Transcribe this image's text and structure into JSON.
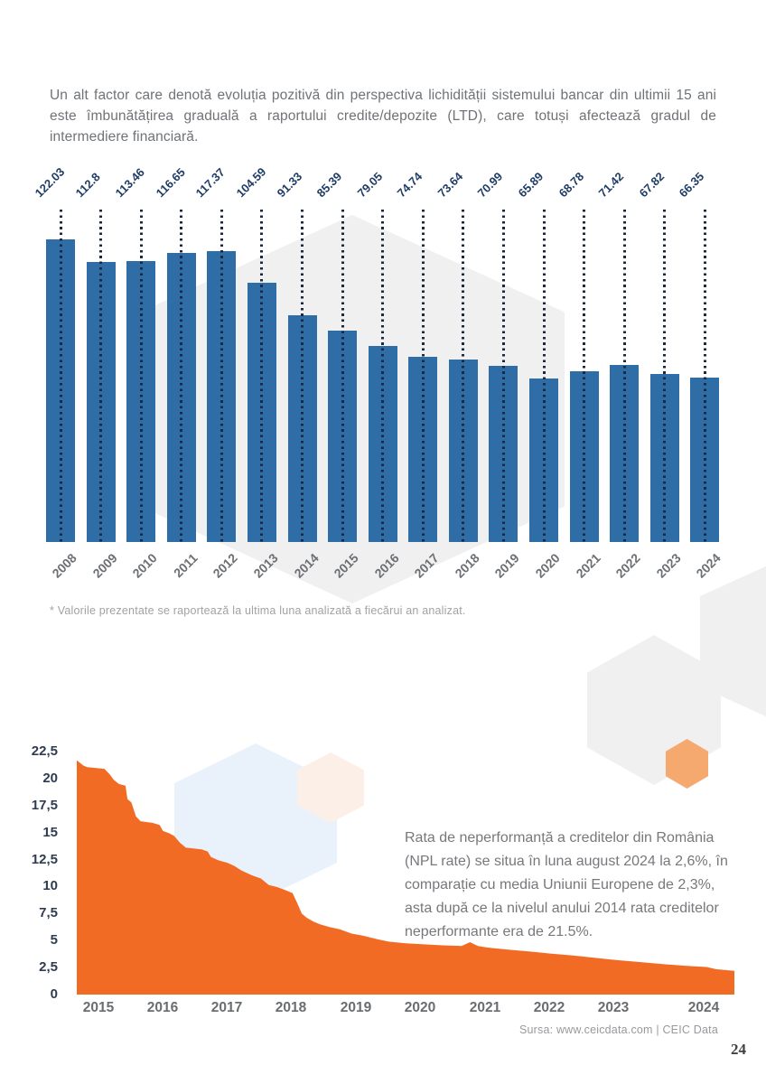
{
  "intro": {
    "text": "Un alt factor care denotă evoluția pozitivă din perspectiva lichidității sistemului bancar din ultimii 15 ani este îmbunătățirea graduală a raportului credite/depozite (LTD), care totuși afectează gradul de intermediere financiară."
  },
  "chart_data": [
    {
      "type": "bar",
      "title": "",
      "categories": [
        "2008",
        "2009",
        "2010",
        "2011",
        "2012",
        "2013",
        "2014",
        "2015",
        "2016",
        "2017",
        "2018",
        "2019",
        "2020",
        "2021",
        "2022",
        "2023",
        "2024"
      ],
      "values": [
        122.03,
        112.8,
        113.46,
        116.65,
        117.37,
        104.59,
        91.33,
        85.39,
        79.05,
        74.74,
        73.64,
        70.99,
        65.89,
        68.78,
        71.42,
        67.82,
        66.35
      ],
      "value_labels": [
        "122.03",
        "112.8",
        "113.46",
        "116.65",
        "117.37",
        "104.59",
        "91.33",
        "85.39",
        "79.05",
        "74.74",
        "73.64",
        "70.99",
        "65.89",
        "68.78",
        "71.42",
        "67.82",
        "66.35"
      ],
      "xlabel": "",
      "ylabel": "",
      "ylim": [
        0,
        125
      ],
      "grid": false,
      "legend": "none",
      "annotation_style": "rotated value labels above dotted leader lines"
    },
    {
      "type": "area",
      "title": "",
      "x_tick_labels": [
        "2015",
        "2016",
        "2017",
        "2018",
        "2019",
        "2020",
        "2021",
        "2022",
        "2023",
        "2024"
      ],
      "y_tick_labels": [
        "22,5",
        "20",
        "17,5",
        "15",
        "12,5",
        "10",
        "7,5",
        "5",
        "2,5",
        "0"
      ],
      "y_tick_values": [
        22.5,
        20,
        17.5,
        15,
        12.5,
        10,
        7.5,
        5,
        2.5,
        0
      ],
      "ylim": [
        0,
        22.5
      ],
      "grid": false,
      "legend": "none",
      "series_name": "NPL rate Romania (%)",
      "points": [
        [
          0.0,
          21.7
        ],
        [
          0.01,
          21.2
        ],
        [
          0.016,
          21.05
        ],
        [
          0.042,
          20.9
        ],
        [
          0.05,
          20.4
        ],
        [
          0.056,
          19.9
        ],
        [
          0.064,
          19.5
        ],
        [
          0.074,
          19.35
        ],
        [
          0.077,
          18.1
        ],
        [
          0.083,
          17.8
        ],
        [
          0.09,
          16.5
        ],
        [
          0.097,
          16.05
        ],
        [
          0.115,
          15.9
        ],
        [
          0.126,
          15.7
        ],
        [
          0.131,
          15.15
        ],
        [
          0.14,
          14.95
        ],
        [
          0.148,
          14.7
        ],
        [
          0.157,
          14.05
        ],
        [
          0.166,
          13.6
        ],
        [
          0.19,
          13.45
        ],
        [
          0.199,
          13.25
        ],
        [
          0.204,
          12.75
        ],
        [
          0.215,
          12.45
        ],
        [
          0.229,
          12.2
        ],
        [
          0.24,
          11.9
        ],
        [
          0.25,
          11.5
        ],
        [
          0.266,
          11.05
        ],
        [
          0.28,
          10.75
        ],
        [
          0.292,
          10.15
        ],
        [
          0.305,
          9.95
        ],
        [
          0.318,
          9.65
        ],
        [
          0.328,
          9.4
        ],
        [
          0.335,
          8.5
        ],
        [
          0.342,
          7.5
        ],
        [
          0.35,
          7.1
        ],
        [
          0.36,
          6.75
        ],
        [
          0.37,
          6.5
        ],
        [
          0.384,
          6.25
        ],
        [
          0.4,
          6.05
        ],
        [
          0.418,
          5.65
        ],
        [
          0.435,
          5.45
        ],
        [
          0.455,
          5.15
        ],
        [
          0.474,
          4.9
        ],
        [
          0.5,
          4.75
        ],
        [
          0.528,
          4.65
        ],
        [
          0.56,
          4.55
        ],
        [
          0.585,
          4.5
        ],
        [
          0.598,
          4.85
        ],
        [
          0.61,
          4.5
        ],
        [
          0.625,
          4.35
        ],
        [
          0.658,
          4.15
        ],
        [
          0.695,
          3.95
        ],
        [
          0.72,
          3.8
        ],
        [
          0.758,
          3.6
        ],
        [
          0.795,
          3.35
        ],
        [
          0.82,
          3.2
        ],
        [
          0.858,
          3.0
        ],
        [
          0.895,
          2.8
        ],
        [
          0.928,
          2.65
        ],
        [
          0.958,
          2.55
        ],
        [
          0.972,
          2.35
        ],
        [
          1.0,
          2.2
        ]
      ]
    }
  ],
  "footnote": {
    "text": "* Valorile prezentate se raportează la ultima luna analizată a fiecărui an analizat."
  },
  "npl": {
    "text": "Rata de neperformanță a creditelor din România (NPL rate) se situa în luna august 2024 la 2,6%, în comparație cu media Uniunii Europene de 2,3%, asta după ce la nivelul anului 2014 rata creditelor neperformante era de 21.5%."
  },
  "source": {
    "text": "Sursa: www.ceicdata.com | CEIC Data"
  },
  "page_number": "24",
  "colors": {
    "bar_blue": "#2e6da6",
    "dotted_line": "#1b2940",
    "value_label_navy": "#1f3d66",
    "area_orange": "#f26b24",
    "hex_gray": "#f0f0f1",
    "hex_orange": "#f5a96f",
    "hex_blue": "#e9f2fb",
    "hex_pink": "#fcefe7"
  }
}
